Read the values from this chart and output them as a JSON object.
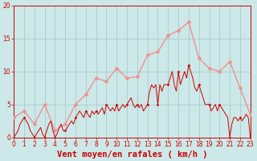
{
  "xlabel": "Vent moyen/en rafales ( km/h )",
  "xlabel_color": "#cc0000",
  "background_color": "#cce8e8",
  "grid_color": "#aacccc",
  "x_ticks": [
    0,
    1,
    2,
    3,
    4,
    5,
    6,
    7,
    8,
    9,
    10,
    11,
    12,
    13,
    14,
    15,
    16,
    17,
    18,
    19,
    20,
    21,
    22,
    23
  ],
  "y_ticks": [
    0,
    5,
    10,
    15,
    20
  ],
  "ylim": [
    0,
    20
  ],
  "xlim": [
    0,
    23
  ],
  "rafales_x": [
    0,
    1,
    2,
    3,
    4,
    5,
    6,
    7,
    8,
    9,
    10,
    11,
    12,
    13,
    14,
    15,
    16,
    17,
    18,
    19,
    20,
    21,
    22,
    23
  ],
  "rafales_y": [
    3,
    4,
    2,
    5,
    1,
    2,
    5,
    6.5,
    9,
    8.5,
    10.5,
    9,
    9.2,
    12.5,
    13,
    15.5,
    16.2,
    17.5,
    12,
    10.5,
    10,
    11.5,
    7.5,
    3.5
  ],
  "rafales_color": "#f09090",
  "rafales_marker": "D",
  "rafales_markersize": 2.5,
  "rafales_linewidth": 1.0,
  "moyen_x": [
    0,
    0.2,
    0.4,
    0.6,
    0.8,
    1,
    1.2,
    1.4,
    1.6,
    1.8,
    2,
    2.2,
    2.4,
    2.6,
    2.8,
    3,
    3.2,
    3.4,
    3.6,
    3.8,
    4,
    4.2,
    4.4,
    4.6,
    4.8,
    5,
    5.2,
    5.4,
    5.6,
    5.8,
    6,
    6.2,
    6.4,
    6.6,
    6.8,
    7,
    7.2,
    7.4,
    7.6,
    7.8,
    8,
    8.2,
    8.4,
    8.6,
    8.8,
    9,
    9.2,
    9.4,
    9.6,
    9.8,
    10,
    10.2,
    10.4,
    10.6,
    10.8,
    11,
    11.2,
    11.4,
    11.6,
    11.8,
    12,
    12.2,
    12.4,
    12.6,
    12.8,
    13,
    13.2,
    13.4,
    13.6,
    13.8,
    14,
    14.2,
    14.4,
    14.6,
    14.8,
    15,
    15.2,
    15.4,
    15.6,
    15.8,
    16,
    16.2,
    16.4,
    16.6,
    16.8,
    17,
    17.2,
    17.4,
    17.6,
    17.8,
    18,
    18.2,
    18.4,
    18.6,
    18.8,
    19,
    19.2,
    19.4,
    19.6,
    19.8,
    20,
    20.2,
    20.4,
    20.6,
    20.8,
    21,
    21.2,
    21.4,
    21.6,
    21.8,
    22,
    22.2,
    22.4,
    22.6,
    22.8,
    23
  ],
  "moyen_y": [
    0,
    0.5,
    1,
    2,
    2.5,
    3,
    2.5,
    2,
    1,
    0.5,
    0,
    0.5,
    1,
    1.5,
    0.5,
    0,
    1,
    2,
    2.5,
    1,
    0,
    0.5,
    1.5,
    2,
    1,
    1,
    1.5,
    2,
    2.5,
    2,
    3,
    3.5,
    4,
    3.5,
    3,
    4,
    3.5,
    3,
    4,
    3.5,
    4,
    3.5,
    4,
    4.5,
    3.5,
    5,
    4.5,
    4,
    4.5,
    4,
    5,
    4,
    4.5,
    5,
    4.5,
    5,
    5.5,
    6,
    5,
    4.5,
    5,
    4.5,
    5,
    4,
    4.5,
    5,
    7,
    8,
    7.5,
    8,
    5,
    8,
    7,
    8,
    8,
    8,
    9,
    10,
    8,
    7,
    10,
    8,
    9,
    10,
    9,
    11,
    10,
    9,
    7.5,
    7,
    8,
    7,
    6,
    5,
    5,
    5,
    4,
    4.5,
    5,
    4,
    5,
    4.5,
    4,
    3.5,
    3,
    0,
    2,
    3,
    3,
    2.5,
    3,
    2.5,
    3,
    3.5,
    3,
    0
  ],
  "moyen_color": "#cc0000",
  "moyen_marker": "D",
  "moyen_markersize": 1.5,
  "moyen_markevery": 5,
  "moyen_linewidth": 0.7,
  "axis_color": "#cc0000",
  "tick_color": "#cc0000",
  "tick_fontsize": 5.5,
  "xlabel_fontsize": 7.5
}
